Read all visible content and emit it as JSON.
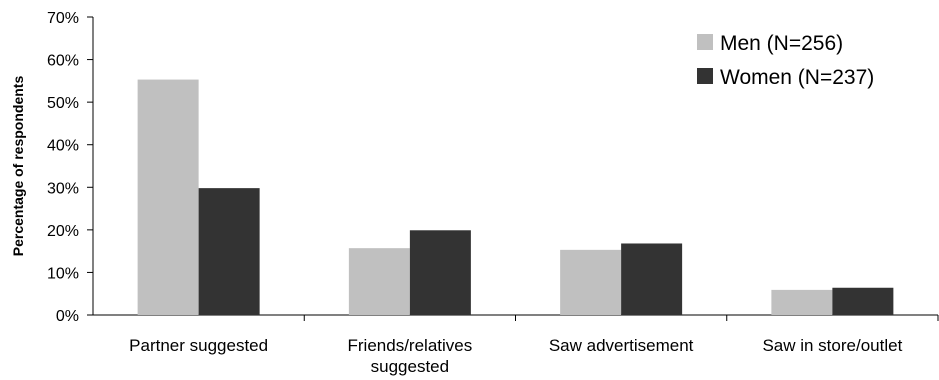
{
  "chart_data": {
    "type": "bar",
    "categories": [
      [
        "Partner suggested"
      ],
      [
        "Friends/relatives",
        "suggested"
      ],
      [
        "Saw advertisement"
      ],
      [
        "Saw in store/outlet"
      ]
    ],
    "series": [
      {
        "name": "Men (N=256)",
        "color": "#c0c0c0",
        "values": [
          55.3,
          15.7,
          15.3,
          5.9
        ]
      },
      {
        "name": "Women (N=237)",
        "color": "#333333",
        "values": [
          29.8,
          19.9,
          16.8,
          6.4
        ]
      }
    ],
    "ylabel": "Percentage of respondents",
    "xlabel": "",
    "ylim": [
      0,
      70
    ],
    "yticks": [
      "0%",
      "10%",
      "20%",
      "30%",
      "40%",
      "50%",
      "60%",
      "70%"
    ],
    "grid": false,
    "legend_position": "top-right"
  }
}
